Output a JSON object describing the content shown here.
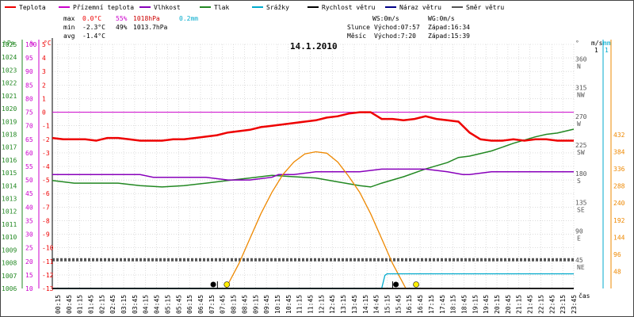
{
  "chart_data": {
    "type": "line",
    "title": "14.1.2010",
    "x_unit_label": "čas",
    "x_ticks": [
      "00:15",
      "00:45",
      "01:15",
      "01:45",
      "02:15",
      "02:45",
      "03:15",
      "03:45",
      "04:15",
      "04:45",
      "05:15",
      "05:45",
      "06:15",
      "06:45",
      "07:15",
      "07:45",
      "08:15",
      "08:45",
      "09:15",
      "09:45",
      "10:15",
      "10:45",
      "11:15",
      "11:45",
      "12:15",
      "12:45",
      "13:15",
      "13:45",
      "14:15",
      "14:45",
      "15:15",
      "15:45",
      "16:15",
      "16:45",
      "17:15",
      "17:45",
      "18:15",
      "18:45",
      "19:15",
      "19:45",
      "20:15",
      "20:45",
      "21:15",
      "21:45",
      "22:15",
      "22:45",
      "23:15",
      "23:45"
    ],
    "legend": [
      {
        "name": "Teplota",
        "color": "#ee0000"
      },
      {
        "name": "Přízemní teplota",
        "color": "#cc00cc"
      },
      {
        "name": "Vlhkost",
        "color": "#8800bb"
      },
      {
        "name": "Tlak",
        "color": "#228822"
      },
      {
        "name": "Srážky",
        "color": "#00aacc"
      },
      {
        "name": "Rychlost větru",
        "color": "#000000"
      },
      {
        "name": "Náraz větru",
        "color": "#000088"
      },
      {
        "name": "Směr větru",
        "color": "#555555"
      }
    ],
    "stats": {
      "max": {
        "label": "max",
        "temp": "0.0°C",
        "hum": "55%",
        "press": "1018hPa",
        "rain": "0.2mm"
      },
      "min": {
        "label": "min",
        "temp": "-2.3°C",
        "hum": "49%",
        "press": "1013.7hPa"
      },
      "avg": {
        "label": "avg",
        "temp": "-1.4°C"
      }
    },
    "wind_info": {
      "ws": "WS:0m/s",
      "wg": "WG:0m/s"
    },
    "sun_info": {
      "label": "Slunce",
      "rise": "Východ:07:57",
      "set": "Západ:16:34"
    },
    "moon_info": {
      "label": "Měsíc",
      "rise": "Východ:7:20",
      "set": "Západ:15:39"
    },
    "axes": {
      "hpa": {
        "label": "hPa",
        "ticks": [
          1025,
          1024,
          1023,
          1022,
          1021,
          1020,
          1019,
          1018,
          1017,
          1016,
          1015,
          1014,
          1013,
          1012,
          1011,
          1010,
          1009,
          1008,
          1007,
          1006
        ],
        "color": "#228822"
      },
      "pct": {
        "label": "%",
        "ticks": [
          100,
          95,
          90,
          85,
          80,
          75,
          70,
          65,
          60,
          55,
          50,
          45,
          40,
          35,
          30,
          25,
          20,
          15,
          10
        ],
        "color": "#cc00cc"
      },
      "temp": {
        "label": "°C",
        "ticks": [
          5,
          4,
          3,
          2,
          1,
          0,
          -1,
          -2,
          -3,
          -4,
          -5,
          -6,
          -7,
          -8,
          -9,
          -10,
          -11,
          -12,
          -13
        ],
        "color": "#ee0000"
      },
      "deg": {
        "label": "°",
        "ticks": [
          {
            "v": "360",
            "d": "N"
          },
          {
            "v": "315",
            "d": "NW"
          },
          {
            "v": "270",
            "d": "W"
          },
          {
            "v": "225",
            "d": "SW"
          },
          {
            "v": "180",
            "d": "S"
          },
          {
            "v": "135",
            "d": "SE"
          },
          {
            "v": "90",
            "d": "E"
          },
          {
            "v": "45",
            "d": "NE"
          }
        ]
      },
      "ms": {
        "label": "m/s",
        "ticks": [
          "1"
        ]
      },
      "mm": {
        "label": "mm",
        "ticks": [
          "1"
        ]
      },
      "wm2": {
        "ticks": [
          432,
          384,
          336,
          288,
          240,
          192,
          144,
          96,
          48
        ],
        "color": "#ee8800"
      }
    },
    "series": {
      "temperature": {
        "name": "Teplota",
        "color": "#ee0000",
        "x": [
          0,
          0.5,
          1,
          1.5,
          2,
          2.5,
          3,
          3.5,
          4,
          4.5,
          5,
          5.5,
          6,
          6.5,
          7,
          7.5,
          8,
          8.5,
          9,
          9.5,
          10,
          10.5,
          11,
          11.5,
          12,
          12.5,
          13,
          13.5,
          14,
          14.5,
          15,
          15.5,
          16,
          16.5,
          17,
          17.5,
          18,
          18.5,
          19,
          19.5,
          20,
          20.5,
          21,
          21.5,
          22,
          22.5,
          23,
          23.5,
          23.75
        ],
        "values": [
          -1.9,
          -2.0,
          -2.0,
          -2.0,
          -2.1,
          -1.9,
          -1.9,
          -2.0,
          -2.1,
          -2.1,
          -2.1,
          -2.0,
          -2.0,
          -1.9,
          -1.8,
          -1.7,
          -1.5,
          -1.4,
          -1.3,
          -1.1,
          -1.0,
          -0.9,
          -0.8,
          -0.7,
          -0.6,
          -0.4,
          -0.3,
          -0.1,
          0.0,
          0.0,
          -0.5,
          -0.5,
          -0.6,
          -0.5,
          -0.3,
          -0.5,
          -0.6,
          -0.7,
          -1.5,
          -2.0,
          -2.1,
          -2.1,
          -2.0,
          -2.1,
          -2.0,
          -2.0,
          -2.1,
          -2.1,
          -2.1
        ]
      },
      "ground_temperature": {
        "name": "Přízemní teplota",
        "color": "#cc00cc",
        "x": [
          0,
          23.75
        ],
        "values": [
          0.0,
          0.0
        ]
      },
      "humidity": {
        "name": "Vlhkost",
        "color": "#8800bb",
        "x": [
          0,
          1,
          2,
          3,
          4,
          4.6,
          5,
          6,
          7,
          8,
          9,
          10,
          10.3,
          11,
          12,
          13,
          14,
          15,
          16,
          17,
          18,
          18.7,
          19,
          20,
          21,
          22,
          23,
          23.75
        ],
        "values": [
          52,
          52,
          52,
          52,
          52,
          51,
          51,
          51,
          51,
          50,
          50,
          51,
          52,
          52,
          53,
          53,
          53,
          54,
          54,
          54,
          53,
          52,
          52,
          53,
          53,
          53,
          53,
          53
        ]
      },
      "pressure": {
        "name": "Tlak",
        "color": "#228822",
        "x": [
          0,
          1,
          2,
          3,
          4,
          5,
          6,
          7,
          8,
          9,
          10,
          11,
          12,
          13,
          14,
          14.5,
          15,
          16,
          17,
          18,
          18.5,
          19,
          20,
          20.5,
          21,
          22,
          22.5,
          23,
          23.75
        ],
        "values": [
          1014.4,
          1014.2,
          1014.2,
          1014.2,
          1014.0,
          1013.9,
          1014.0,
          1014.2,
          1014.4,
          1014.6,
          1014.8,
          1014.7,
          1014.6,
          1014.3,
          1014.0,
          1013.9,
          1014.2,
          1014.7,
          1015.3,
          1015.8,
          1016.2,
          1016.3,
          1016.7,
          1017.0,
          1017.3,
          1017.8,
          1018.0,
          1018.1,
          1018.4
        ]
      },
      "rain": {
        "name": "Srážky",
        "color": "#00aacc",
        "x": [
          0,
          15.0,
          15.15,
          15.25,
          23.75
        ],
        "values": [
          0,
          0,
          0.18,
          0.2,
          0.2
        ]
      },
      "wind_speed": {
        "name": "Rychlost větru",
        "color": "#000000",
        "x": [
          0,
          23.75
        ],
        "values": [
          0,
          0
        ]
      },
      "wind_gust": {
        "name": "Náraz větru",
        "color": "#000088",
        "x": [
          0,
          23.75
        ],
        "values": [
          0,
          0
        ]
      },
      "wind_direction": {
        "name": "Směr větru",
        "color": "#555555",
        "x": [
          0,
          23.75
        ],
        "values": [
          45,
          45
        ]
      },
      "solar": {
        "color": "#ee8800",
        "x": [
          7.9,
          8.5,
          9,
          9.5,
          10,
          10.5,
          11,
          11.5,
          12,
          12.5,
          13,
          13.5,
          14,
          14.5,
          15,
          15.5,
          16.1
        ],
        "values": [
          0,
          70,
          140,
          210,
          270,
          320,
          355,
          378,
          384,
          380,
          355,
          315,
          270,
          210,
          140,
          70,
          0
        ]
      }
    },
    "grid": true
  }
}
